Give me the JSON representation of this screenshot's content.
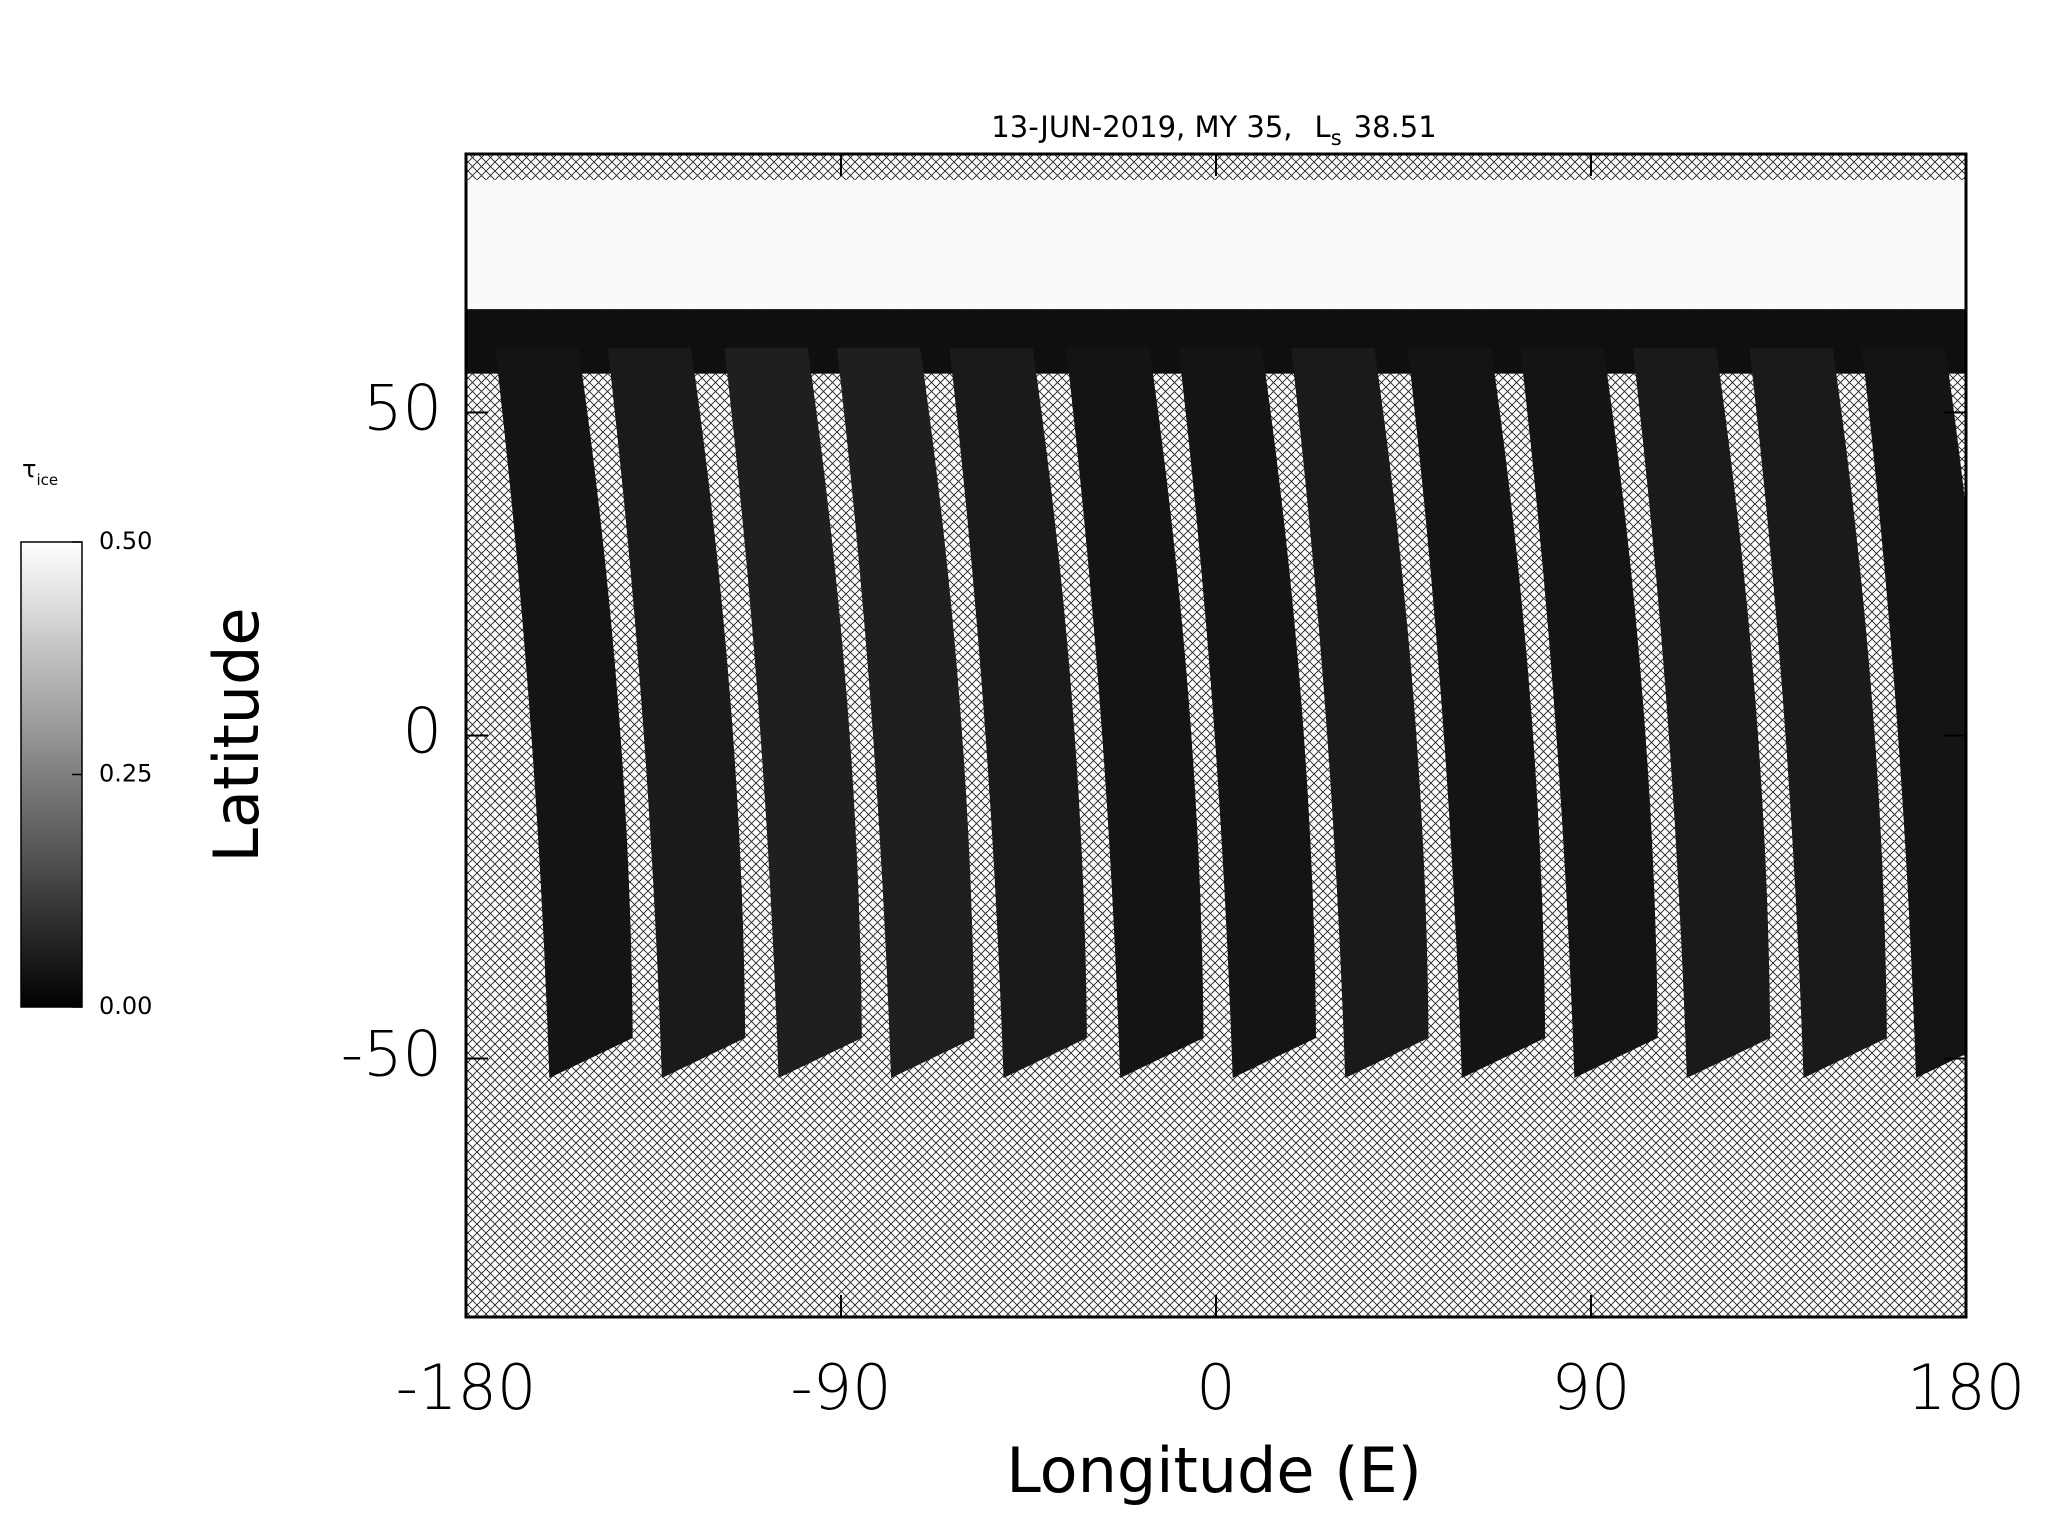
{
  "chart_data": {
    "type": "map",
    "title_prefix": "13-JUN-2019, MY 35,",
    "title_symbol": "L",
    "title_subscript": "s",
    "title_value": "38.51",
    "xlabel": "Longitude (E)",
    "ylabel": "Latitude",
    "xlim": [
      -180,
      180
    ],
    "ylim": [
      -90,
      90
    ],
    "xticks": [
      -180,
      -90,
      0,
      90,
      180
    ],
    "yticks": [
      -50,
      0,
      50
    ],
    "colorbar": {
      "symbol": "τ",
      "subscript": "ice",
      "lim": [
        0,
        0.5
      ],
      "ticks": [
        {
          "value": 0,
          "label": "0.00"
        },
        {
          "value": 0.25,
          "label": "0.25"
        },
        {
          "value": 0.5,
          "label": "0.50"
        }
      ]
    },
    "polar_cap": {
      "lat_min": 66,
      "lat_max": 86,
      "tau": 0.49
    },
    "north_band": {
      "lat_min": 56,
      "lat_max": 66,
      "tau": 0.03
    },
    "swaths": {
      "lat_min": -53,
      "lat_max": 60,
      "width": 20,
      "tilt": 13,
      "lon": [
        -160,
        -133,
        -105,
        -78,
        -51,
        -23,
        4,
        31,
        59,
        86,
        113,
        141,
        168
      ],
      "tau": [
        0.04,
        0.05,
        0.06,
        0.06,
        0.05,
        0.04,
        0.04,
        0.05,
        0.04,
        0.04,
        0.05,
        0.05,
        0.04
      ]
    }
  }
}
